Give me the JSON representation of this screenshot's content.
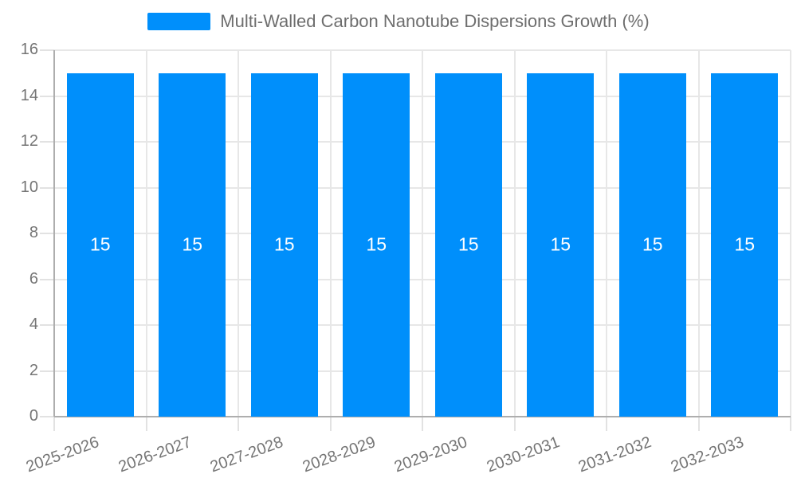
{
  "chart_data": {
    "type": "bar",
    "title": "Multi-Walled Carbon Nanotube Dispersions Growth (%)",
    "categories": [
      "2025-2026",
      "2026-2027",
      "2027-2028",
      "2028-2029",
      "2029-2030",
      "2030-2031",
      "2031-2032",
      "2032-2033"
    ],
    "series": [
      {
        "name": "Multi-Walled Carbon Nanotube Dispersions Growth (%)",
        "values": [
          15,
          15,
          15,
          15,
          15,
          15,
          15,
          15
        ]
      }
    ],
    "data_labels": [
      "15",
      "15",
      "15",
      "15",
      "15",
      "15",
      "15",
      "15"
    ],
    "xlabel": "",
    "ylabel": "",
    "ylim": [
      0,
      16
    ],
    "ytick_labels": [
      "0",
      "2",
      "4",
      "6",
      "8",
      "10",
      "12",
      "14",
      "16"
    ],
    "grid": true,
    "legend_position": "top",
    "x_label_rotation": -20
  },
  "colors": {
    "bar": "#008FFB",
    "grid": "#e7e7e7",
    "tick": "#e2e2e2",
    "axis": "#aeaeae",
    "label": "#757575",
    "legend_text": "#6e6e6e",
    "bar_label": "#ffffff",
    "background": "#ffffff"
  }
}
